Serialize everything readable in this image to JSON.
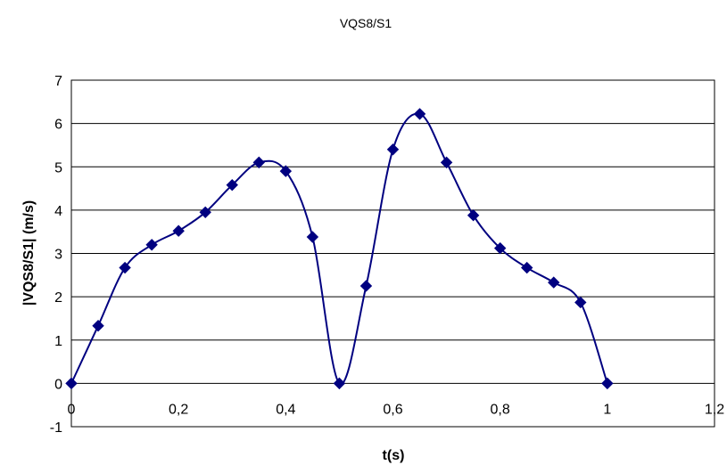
{
  "chart_data": {
    "type": "scatter",
    "title": "VQS8/S1",
    "xlabel": "t(s)",
    "ylabel": "|VQS8/S1| (m/s)",
    "xlim": [
      0,
      1.2
    ],
    "ylim": [
      -1,
      7
    ],
    "x_ticks": [
      "0",
      "0,2",
      "0,4",
      "0,6",
      "0,8",
      "1",
      "1,2"
    ],
    "y_ticks": [
      "-1",
      "0",
      "1",
      "2",
      "3",
      "4",
      "5",
      "6",
      "7"
    ],
    "grid": "horizontal",
    "line": "smoothed",
    "marker": "diamond",
    "color": "#000080",
    "series": [
      {
        "x": [
          0,
          0.05,
          0.1,
          0.15,
          0.2,
          0.25,
          0.3,
          0.35,
          0.4,
          0.45,
          0.5,
          0.55,
          0.6,
          0.65,
          0.7,
          0.75,
          0.8,
          0.85,
          0.9,
          0.95,
          1.0
        ],
        "y": [
          0,
          1.33,
          2.67,
          3.2,
          3.52,
          3.95,
          4.58,
          5.1,
          4.9,
          3.38,
          0,
          2.25,
          5.4,
          6.22,
          5.1,
          3.88,
          3.12,
          2.67,
          2.33,
          1.87,
          0
        ]
      }
    ]
  }
}
